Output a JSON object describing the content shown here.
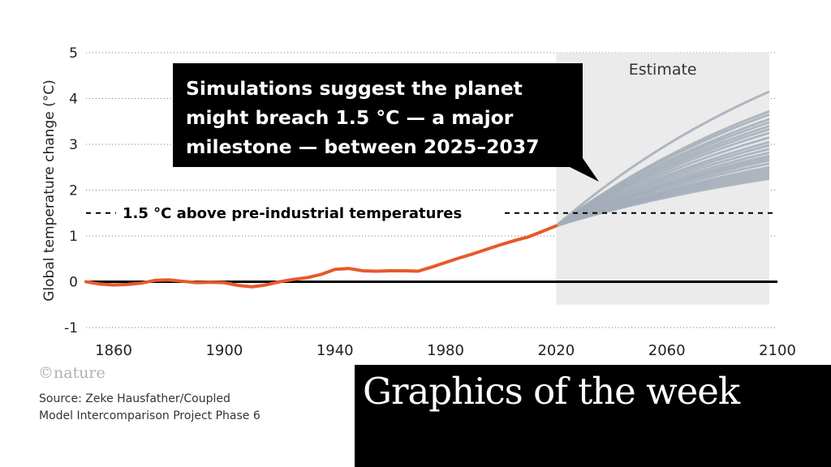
{
  "chart_data": {
    "type": "line",
    "ylabel": "Global temperature change (°C)",
    "xlim": [
      1850,
      2100
    ],
    "ylim": [
      -1,
      5
    ],
    "x_ticks": [
      "1860",
      "1900",
      "1940",
      "1980",
      "2020",
      "2060",
      "2100"
    ],
    "y_ticks": [
      "-1",
      "0",
      "1",
      "2",
      "3",
      "4",
      "5"
    ],
    "grid": "dotted horizontal",
    "shaded_region": {
      "label": "Estimate",
      "x": [
        2020,
        2100
      ]
    },
    "threshold": {
      "y": 1.5,
      "label": "1.5 °C above pre-industrial temperatures"
    },
    "annotation": "Simulations suggest the planet might breach 1.5 °C — a major milestone — between 2025–2037",
    "historical": {
      "color": "#e8592a",
      "x": [
        1850,
        1855,
        1860,
        1865,
        1870,
        1875,
        1880,
        1885,
        1890,
        1895,
        1900,
        1905,
        1910,
        1915,
        1920,
        1925,
        1930,
        1935,
        1940,
        1945,
        1950,
        1955,
        1960,
        1965,
        1970,
        1975,
        1980,
        1985,
        1990,
        1995,
        2000,
        2005,
        2010,
        2015,
        2020
      ],
      "y": [
        0.0,
        -0.05,
        -0.07,
        -0.06,
        -0.03,
        0.03,
        0.04,
        0.01,
        -0.02,
        -0.01,
        -0.02,
        -0.08,
        -0.11,
        -0.07,
        0.0,
        0.05,
        0.09,
        0.16,
        0.27,
        0.29,
        0.24,
        0.23,
        0.24,
        0.24,
        0.23,
        0.32,
        0.42,
        0.52,
        0.61,
        0.71,
        0.81,
        0.9,
        0.98,
        1.1,
        1.22
      ]
    },
    "projections": {
      "color": "#a3adb8",
      "x": [
        2020,
        2100
      ],
      "end_values": [
        4.15,
        3.72,
        3.65,
        3.55,
        3.48,
        3.4,
        3.33,
        3.25,
        3.15,
        3.05,
        2.98,
        2.9,
        2.82,
        2.75,
        2.7,
        2.65,
        2.58,
        2.5,
        2.45,
        2.4,
        2.35,
        2.3,
        2.25
      ]
    },
    "baseline_y": 0
  },
  "logo": "©nature",
  "source_lines": [
    "Source: Zeke Hausfather/Coupled",
    "Model Intercomparison Project Phase 6"
  ],
  "banner_title": "Graphics of the week"
}
